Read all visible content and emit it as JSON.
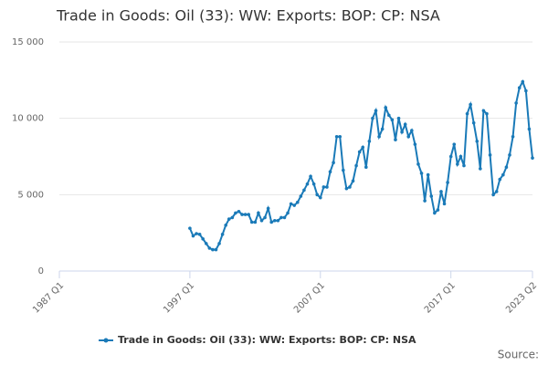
{
  "chart_data": {
    "type": "line",
    "title": "Trade in Goods: Oil (33): WW: Exports: BOP: CP: NSA",
    "source": "Source:",
    "categories": [
      "1987 Q1",
      "1987 Q2",
      "1987 Q3",
      "1987 Q4",
      "1988 Q1",
      "1988 Q2",
      "1988 Q3",
      "1988 Q4",
      "1989 Q1",
      "1989 Q2",
      "1989 Q3",
      "1989 Q4",
      "1990 Q1",
      "1990 Q2",
      "1990 Q3",
      "1990 Q4",
      "1991 Q1",
      "1991 Q2",
      "1991 Q3",
      "1991 Q4",
      "1992 Q1",
      "1992 Q2",
      "1992 Q3",
      "1992 Q4",
      "1993 Q1",
      "1993 Q2",
      "1993 Q3",
      "1993 Q4",
      "1994 Q1",
      "1994 Q2",
      "1994 Q3",
      "1994 Q4",
      "1995 Q1",
      "1995 Q2",
      "1995 Q3",
      "1995 Q4",
      "1996 Q1",
      "1996 Q2",
      "1996 Q3",
      "1996 Q4",
      "1997 Q1",
      "1997 Q2",
      "1997 Q3",
      "1997 Q4",
      "1998 Q1",
      "1998 Q2",
      "1998 Q3",
      "1998 Q4",
      "1999 Q1",
      "1999 Q2",
      "1999 Q3",
      "1999 Q4",
      "2000 Q1",
      "2000 Q2",
      "2000 Q3",
      "2000 Q4",
      "2001 Q1",
      "2001 Q2",
      "2001 Q3",
      "2001 Q4",
      "2002 Q1",
      "2002 Q2",
      "2002 Q3",
      "2002 Q4",
      "2003 Q1",
      "2003 Q2",
      "2003 Q3",
      "2003 Q4",
      "2004 Q1",
      "2004 Q2",
      "2004 Q3",
      "2004 Q4",
      "2005 Q1",
      "2005 Q2",
      "2005 Q3",
      "2005 Q4",
      "2006 Q1",
      "2006 Q2",
      "2006 Q3",
      "2006 Q4",
      "2007 Q1",
      "2007 Q2",
      "2007 Q3",
      "2007 Q4",
      "2008 Q1",
      "2008 Q2",
      "2008 Q3",
      "2008 Q4",
      "2009 Q1",
      "2009 Q2",
      "2009 Q3",
      "2009 Q4",
      "2010 Q1",
      "2010 Q2",
      "2010 Q3",
      "2010 Q4",
      "2011 Q1",
      "2011 Q2",
      "2011 Q3",
      "2011 Q4",
      "2012 Q1",
      "2012 Q2",
      "2012 Q3",
      "2012 Q4",
      "2013 Q1",
      "2013 Q2",
      "2013 Q3",
      "2013 Q4",
      "2014 Q1",
      "2014 Q2",
      "2014 Q3",
      "2014 Q4",
      "2015 Q1",
      "2015 Q2",
      "2015 Q3",
      "2015 Q4",
      "2016 Q1",
      "2016 Q2",
      "2016 Q3",
      "2016 Q4",
      "2017 Q1",
      "2017 Q2",
      "2017 Q3",
      "2017 Q4",
      "2018 Q1",
      "2018 Q2",
      "2018 Q3",
      "2018 Q4",
      "2019 Q1",
      "2019 Q2",
      "2019 Q3",
      "2019 Q4",
      "2020 Q1",
      "2020 Q2",
      "2020 Q3",
      "2020 Q4",
      "2021 Q1",
      "2021 Q2",
      "2021 Q3",
      "2021 Q4",
      "2022 Q1",
      "2022 Q2",
      "2022 Q3",
      "2022 Q4",
      "2023 Q1",
      "2023 Q2"
    ],
    "series": [
      {
        "name": "Trade in Goods: Oil (33): WW: Exports: BOP: CP: NSA",
        "color": "#1a7ab8",
        "values": [
          null,
          null,
          null,
          null,
          null,
          null,
          null,
          null,
          null,
          null,
          null,
          null,
          null,
          null,
          null,
          null,
          null,
          null,
          null,
          null,
          null,
          null,
          null,
          null,
          null,
          null,
          null,
          null,
          null,
          null,
          null,
          null,
          null,
          null,
          null,
          null,
          null,
          null,
          null,
          null,
          2800,
          2300,
          2450,
          2400,
          2100,
          1800,
          1500,
          1400,
          1400,
          1800,
          2400,
          3000,
          3400,
          3500,
          3800,
          3900,
          3700,
          3700,
          3700,
          3200,
          3200,
          3800,
          3300,
          3500,
          4100,
          3200,
          3300,
          3300,
          3500,
          3500,
          3800,
          4400,
          4300,
          4500,
          4900,
          5300,
          5700,
          6200,
          5700,
          5000,
          4800,
          5500,
          5500,
          6500,
          7100,
          8800,
          8800,
          6600,
          5400,
          5500,
          5900,
          6900,
          7800,
          8100,
          6800,
          8500,
          10000,
          10500,
          8800,
          9300,
          10700,
          10200,
          9900,
          8600,
          10000,
          9100,
          9600,
          8800,
          9200,
          8300,
          7000,
          6400,
          4600,
          6300,
          4900,
          3800,
          4000,
          5200,
          4400,
          5800,
          7500,
          8300,
          7000,
          7500,
          6900,
          10300,
          10900,
          9700,
          8500,
          6700,
          10500,
          10300,
          7600,
          5000,
          5200,
          6000,
          6300,
          6800,
          7600,
          8800,
          11000,
          12000,
          12400,
          11800,
          9300,
          7400
        ]
      }
    ],
    "xticks": [
      "1987 Q1",
      "1997 Q1",
      "2007 Q1",
      "2017 Q1",
      "2023 Q2"
    ],
    "ylim": [
      0,
      15000
    ],
    "yticks": [
      {
        "value": 0,
        "label": "0"
      },
      {
        "value": 5000,
        "label": "5 000"
      },
      {
        "value": 10000,
        "label": "10 000"
      },
      {
        "value": 15000,
        "label": "15 000"
      }
    ],
    "grid": true
  }
}
